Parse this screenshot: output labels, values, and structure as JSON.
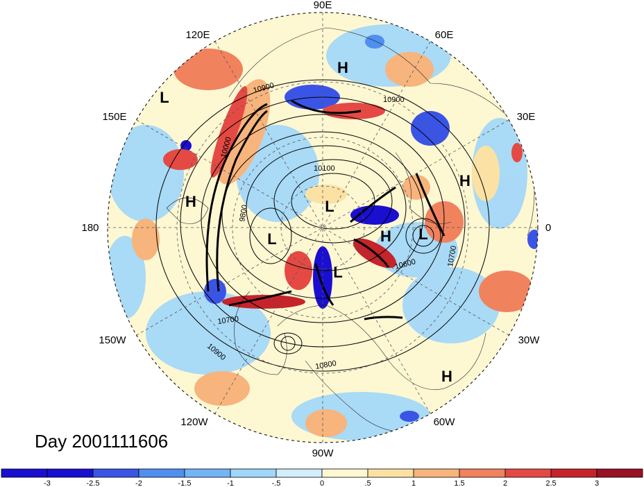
{
  "title": "Day 2001111606",
  "longitude_labels": [
    "90E",
    "60E",
    "30E",
    "0",
    "30W",
    "60W",
    "90W",
    "120W",
    "150W",
    "180",
    "150E",
    "120E"
  ],
  "pressure_systems": [
    {
      "label": "H",
      "name": "high-siberia"
    },
    {
      "label": "L",
      "name": "low-west-pacific"
    },
    {
      "label": "H",
      "name": "high-north-pacific"
    },
    {
      "label": "L",
      "name": "low-pole"
    },
    {
      "label": "L",
      "name": "low-alaska"
    },
    {
      "label": "L",
      "name": "low-canada"
    },
    {
      "label": "H",
      "name": "high-greenland"
    },
    {
      "label": "L",
      "name": "low-europe"
    },
    {
      "label": "H",
      "name": "high-africa"
    },
    {
      "label": "H",
      "name": "high-atlantic"
    }
  ],
  "contour_labels": [
    "10900",
    "10900",
    "10100",
    "9800",
    "10600",
    "10700",
    "10700",
    "10900",
    "10800",
    "10000"
  ],
  "colorbar": {
    "ticks": [
      "-3",
      "-2.5",
      "-2",
      "-1.5",
      "-1",
      "-.5",
      "0",
      ".5",
      "1",
      "1.5",
      "2",
      "2.5",
      "3"
    ],
    "colors": [
      "#1a0fd1",
      "#3a55e6",
      "#4f8ff0",
      "#72b4f5",
      "#a0d6fa",
      "#d2eefd",
      "#fdf7d2",
      "#fbe2a4",
      "#f7b47c",
      "#f0825e",
      "#e44a43",
      "#c5242a",
      "#9a1025"
    ]
  }
}
